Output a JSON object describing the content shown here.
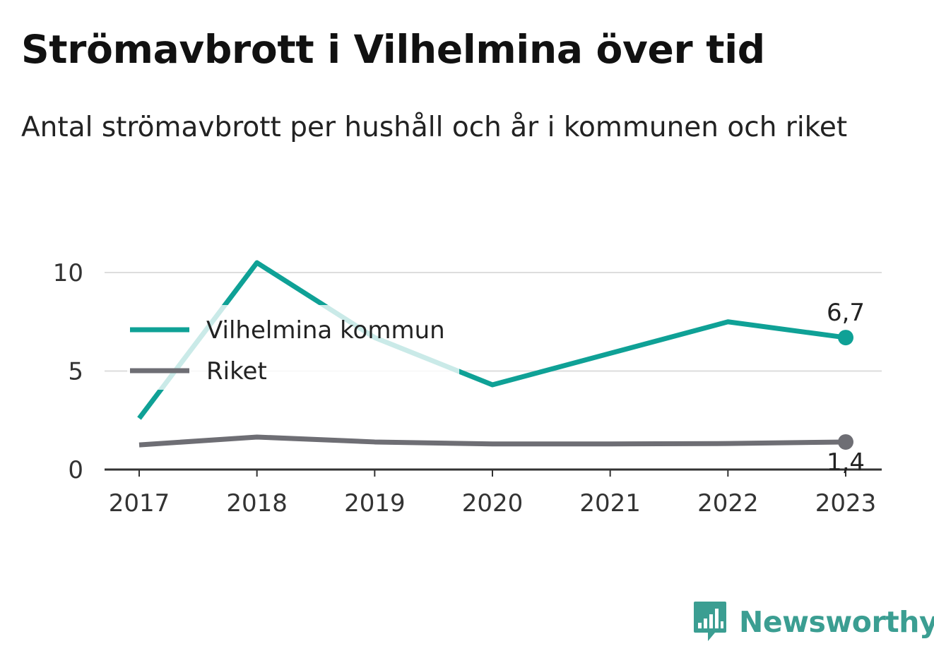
{
  "title": "Strömavbrott i Vilhelmina över tid",
  "subtitle": "Antal strömavbrott per hushåll och år i kommunen och riket",
  "brand": {
    "name": "Newsworthy",
    "color": "#3b9e92",
    "icon": "bar-chart-speech-bubble-icon"
  },
  "chart_data": {
    "type": "line",
    "x": [
      "2017",
      "2018",
      "2019",
      "2020",
      "2021",
      "2022",
      "2023"
    ],
    "yticks": [
      "0",
      "5",
      "10"
    ],
    "ylim": [
      0,
      10
    ],
    "grid": true,
    "legend_position": "top-left",
    "series": [
      {
        "name": "Vilhelmina kommun",
        "color": "#0fa196",
        "values": [
          2.6,
          10.5,
          6.7,
          4.3,
          5.9,
          7.5,
          6.7
        ],
        "end_label": "6,7"
      },
      {
        "name": "Riket",
        "color": "#6e6e74",
        "values": [
          1.25,
          1.65,
          1.4,
          1.3,
          1.3,
          1.32,
          1.4
        ],
        "end_label": "1,4"
      }
    ]
  }
}
